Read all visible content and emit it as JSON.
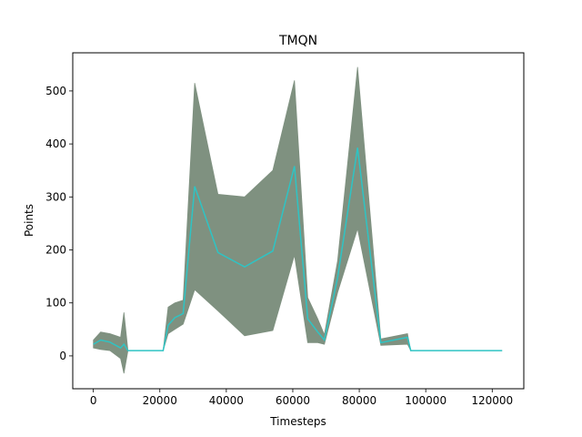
{
  "chart_data": {
    "type": "area",
    "title": "TMQN",
    "xlabel": "Timesteps",
    "ylabel": "Points",
    "xlim": [
      -6200,
      129500
    ],
    "ylim": [
      -62,
      572
    ],
    "xticks": [
      0,
      20000,
      40000,
      60000,
      80000,
      100000,
      120000
    ],
    "yticks": [
      0,
      100,
      200,
      300,
      400,
      500
    ],
    "grid": false,
    "colors": {
      "band": "#7f9180",
      "line": "#2ec4c4"
    },
    "series": [
      {
        "x": [
          0,
          2200,
          5000,
          8200,
          9200,
          10400,
          21000,
          22500,
          24500,
          27000,
          30500,
          37500,
          45500,
          54000,
          60500,
          64500,
          67500,
          69500,
          73500,
          79500,
          86500,
          94500,
          95500,
          100000,
          123000
        ],
        "mean": [
          22,
          30,
          26,
          15,
          22,
          10,
          10,
          58,
          72,
          80,
          320,
          195,
          168,
          198,
          358,
          70,
          45,
          30,
          148,
          393,
          25,
          35,
          10,
          10,
          10
        ],
        "upper": [
          30,
          45,
          42,
          35,
          82,
          10,
          10,
          92,
          100,
          105,
          515,
          305,
          300,
          350,
          520,
          110,
          70,
          40,
          180,
          545,
          32,
          42,
          10,
          10,
          10
        ],
        "lower": [
          15,
          12,
          10,
          -5,
          -33,
          10,
          10,
          42,
          50,
          60,
          125,
          85,
          38,
          48,
          190,
          25,
          25,
          22,
          120,
          240,
          20,
          22,
          10,
          10,
          10
        ]
      }
    ]
  }
}
